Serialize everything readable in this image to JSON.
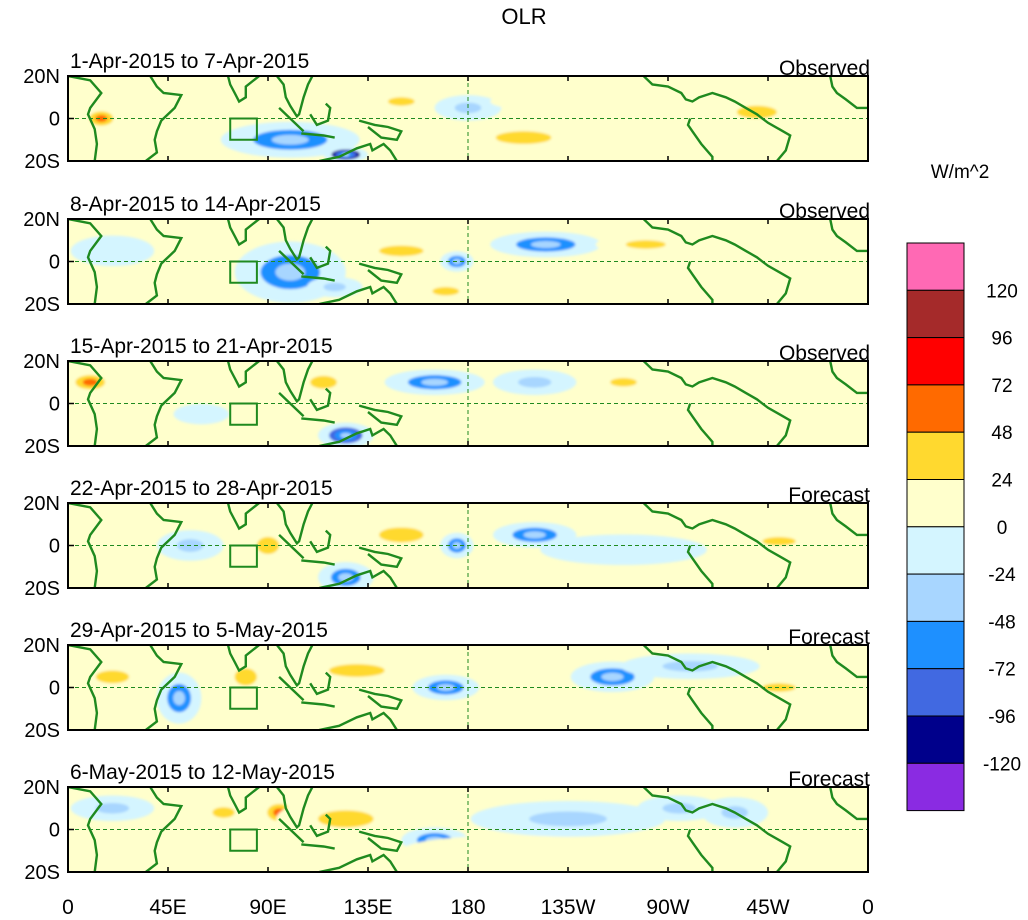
{
  "chart_data": {
    "type": "heatmap",
    "title": "OLR",
    "units_label": "W/m^2",
    "y_ticks": [
      "20N",
      "0",
      "20S"
    ],
    "x_ticks": [
      "0",
      "45E",
      "90E",
      "135E",
      "180",
      "135W",
      "90W",
      "45W",
      "0"
    ],
    "x_range_deg_east": [
      0,
      360
    ],
    "y_range_deg": [
      -20,
      20
    ],
    "colorbar": {
      "levels": [
        "120",
        "96",
        "72",
        "48",
        "24",
        "0",
        "-24",
        "-48",
        "-72",
        "-96",
        "-120"
      ],
      "colors": [
        "#ff69b4",
        "#a52a2a",
        "#ff0000",
        "#ff6a00",
        "#ffd92f",
        "#ffffcc",
        "#d4f5ff",
        "#a8d6ff",
        "#1e90ff",
        "#4169e1",
        "#00008b",
        "#8a2be2"
      ]
    },
    "panels": [
      {
        "period": "1-Apr-2015 to 7-Apr-2015",
        "status": "Observed",
        "blobs": [
          {
            "lon": 15,
            "lat": 0,
            "rlon": 8,
            "rlat": 5,
            "value": 60
          },
          {
            "lon": 100,
            "lat": -10,
            "rlon": 25,
            "rlat": 7,
            "value": -60
          },
          {
            "lon": 125,
            "lat": -17,
            "rlon": 8,
            "rlat": 3,
            "value": -100
          },
          {
            "lon": 150,
            "lat": 8,
            "rlon": 12,
            "rlat": 4,
            "value": 30
          },
          {
            "lon": 205,
            "lat": -9,
            "rlon": 25,
            "rlat": 6,
            "value": 35
          },
          {
            "lon": 310,
            "lat": 3,
            "rlon": 18,
            "rlat": 6,
            "value": 30
          },
          {
            "lon": 80,
            "lat": 5,
            "rlon": 12,
            "rlat": 6,
            "value": 12
          },
          {
            "lon": 180,
            "lat": 5,
            "rlon": 12,
            "rlat": 5,
            "value": -40
          },
          {
            "lon": 240,
            "lat": 8,
            "rlon": 40,
            "rlat": 5,
            "value": 10
          }
        ]
      },
      {
        "period": "8-Apr-2015 to 14-Apr-2015",
        "status": "Observed",
        "blobs": [
          {
            "lon": 100,
            "lat": -5,
            "rlon": 20,
            "rlat": 12,
            "value": -65
          },
          {
            "lon": 150,
            "lat": 5,
            "rlon": 20,
            "rlat": 5,
            "value": 40
          },
          {
            "lon": 175,
            "lat": 0,
            "rlon": 6,
            "rlat": 4,
            "value": -55
          },
          {
            "lon": 215,
            "lat": 8,
            "rlon": 20,
            "rlat": 5,
            "value": -50
          },
          {
            "lon": 260,
            "lat": 8,
            "rlon": 18,
            "rlat": 4,
            "value": 35
          },
          {
            "lon": 170,
            "lat": -14,
            "rlon": 12,
            "rlat": 4,
            "value": 40
          },
          {
            "lon": 20,
            "lat": 5,
            "rlon": 15,
            "rlat": 6,
            "value": -20
          },
          {
            "lon": 55,
            "lat": -5,
            "rlon": 10,
            "rlat": 5,
            "value": 20
          },
          {
            "lon": 120,
            "lat": -12,
            "rlon": 10,
            "rlat": 4,
            "value": -30
          }
        ]
      },
      {
        "period": "15-Apr-2015 to 21-Apr-2015",
        "status": "Observed",
        "blobs": [
          {
            "lon": 10,
            "lat": 10,
            "rlon": 10,
            "rlat": 5,
            "value": 55
          },
          {
            "lon": 125,
            "lat": -15,
            "rlon": 10,
            "rlat": 5,
            "value": -90
          },
          {
            "lon": 115,
            "lat": 10,
            "rlon": 12,
            "rlat": 6,
            "value": 35
          },
          {
            "lon": 165,
            "lat": 10,
            "rlon": 18,
            "rlat": 5,
            "value": -50
          },
          {
            "lon": 210,
            "lat": 10,
            "rlon": 15,
            "rlat": 5,
            "value": -45
          },
          {
            "lon": 250,
            "lat": 10,
            "rlon": 12,
            "rlat": 4,
            "value": 35
          },
          {
            "lon": 190,
            "lat": -5,
            "rlon": 20,
            "rlat": 5,
            "value": 12
          },
          {
            "lon": 60,
            "lat": -5,
            "rlon": 10,
            "rlat": 4,
            "value": -20
          }
        ]
      },
      {
        "period": "22-Apr-2015 to 28-Apr-2015",
        "status": "Forecast",
        "blobs": [
          {
            "lon": 90,
            "lat": 0,
            "rlon": 10,
            "rlat": 8,
            "value": 30
          },
          {
            "lon": 150,
            "lat": 5,
            "rlon": 20,
            "rlat": 7,
            "value": 40
          },
          {
            "lon": 175,
            "lat": 0,
            "rlon": 6,
            "rlat": 5,
            "value": -65
          },
          {
            "lon": 210,
            "lat": 5,
            "rlon": 15,
            "rlat": 5,
            "value": -60
          },
          {
            "lon": 125,
            "lat": -15,
            "rlon": 10,
            "rlat": 6,
            "value": -60
          },
          {
            "lon": 55,
            "lat": 0,
            "rlon": 12,
            "rlat": 6,
            "value": -30
          },
          {
            "lon": 320,
            "lat": 2,
            "rlon": 15,
            "rlat": 4,
            "value": 30
          },
          {
            "lon": 250,
            "lat": -2,
            "rlon": 30,
            "rlat": 6,
            "value": -20
          }
        ]
      },
      {
        "period": "29-Apr-2015 to 5-May-2015",
        "status": "Forecast",
        "blobs": [
          {
            "lon": 50,
            "lat": -5,
            "rlon": 8,
            "rlat": 10,
            "value": -65
          },
          {
            "lon": 80,
            "lat": 5,
            "rlon": 10,
            "rlat": 8,
            "value": 35
          },
          {
            "lon": 130,
            "lat": 8,
            "rlon": 25,
            "rlat": 6,
            "value": 40
          },
          {
            "lon": 170,
            "lat": 0,
            "rlon": 12,
            "rlat": 5,
            "value": -70
          },
          {
            "lon": 245,
            "lat": 5,
            "rlon": 15,
            "rlat": 6,
            "value": -70
          },
          {
            "lon": 280,
            "lat": 10,
            "rlon": 25,
            "rlat": 5,
            "value": -30
          },
          {
            "lon": 20,
            "lat": 5,
            "rlon": 15,
            "rlat": 6,
            "value": 30
          },
          {
            "lon": 320,
            "lat": 0,
            "rlon": 15,
            "rlat": 4,
            "value": 25
          }
        ]
      },
      {
        "period": "6-May-2015 to 12-May-2015",
        "status": "Forecast",
        "blobs": [
          {
            "lon": 95,
            "lat": 8,
            "rlon": 8,
            "rlat": 6,
            "value": 70
          },
          {
            "lon": 125,
            "lat": 5,
            "rlon": 25,
            "rlat": 8,
            "value": 35
          },
          {
            "lon": 165,
            "lat": -5,
            "rlon": 12,
            "rlat": 5,
            "value": -65
          },
          {
            "lon": 225,
            "lat": 5,
            "rlon": 35,
            "rlat": 7,
            "value": -25
          },
          {
            "lon": 275,
            "lat": 10,
            "rlon": 15,
            "rlat": 5,
            "value": -40
          },
          {
            "lon": 300,
            "lat": 8,
            "rlon": 12,
            "rlat": 6,
            "value": -30
          },
          {
            "lon": 70,
            "lat": 8,
            "rlon": 10,
            "rlat": 5,
            "value": 25
          },
          {
            "lon": 20,
            "lat": 10,
            "rlon": 15,
            "rlat": 5,
            "value": -30
          },
          {
            "lon": 200,
            "lat": -10,
            "rlon": 40,
            "rlat": 6,
            "value": 15
          }
        ]
      }
    ]
  }
}
